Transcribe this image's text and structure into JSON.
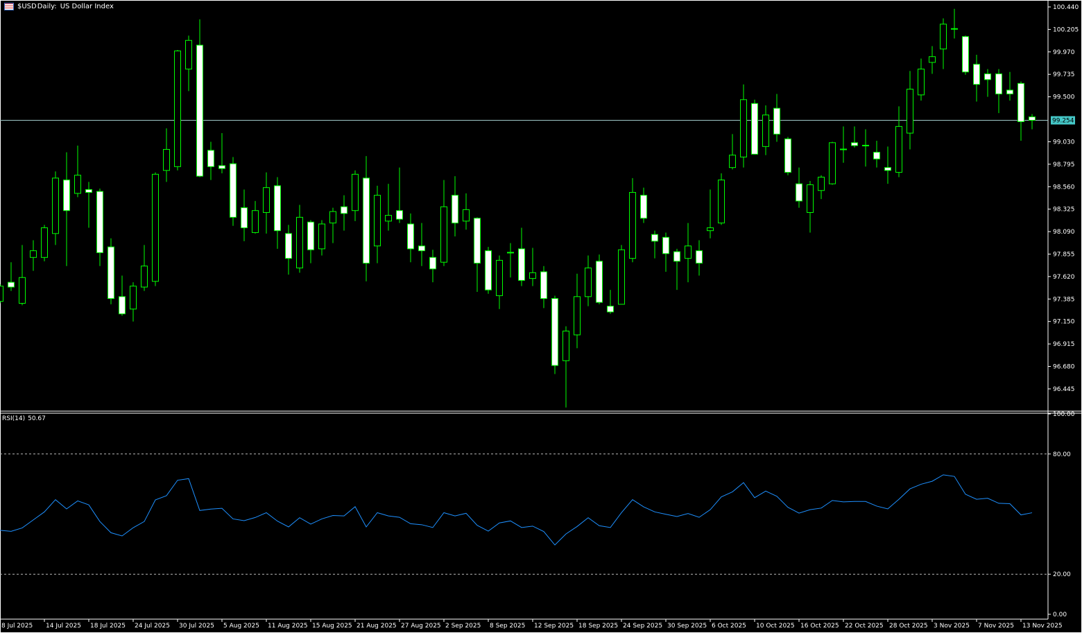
{
  "header": {
    "symbol": "$USD",
    "timeframe": "Daily:",
    "description": "US Dollar Index",
    "icon": "flag-icon"
  },
  "rsi_panel": {
    "name": "RSI(14)",
    "value": "50.67"
  },
  "colors": {
    "background": "#000000",
    "candle_outline": "#00ff00",
    "bear_body": "#ffffff",
    "bull_body": "#000000",
    "rsi_line": "#1e90ff",
    "price_line": "#9fc9c9",
    "price_label_bg": "#45c8c8",
    "axis": "#ffffff"
  },
  "chart_data": [
    {
      "type": "candlestick",
      "title": "$USD, Daily:  US Dollar Index",
      "ylim": [
        96.3,
        100.46
      ],
      "y_ticks": [
        "100.440",
        "100.205",
        "99.970",
        "99.735",
        "99.500",
        "99.030",
        "98.795",
        "98.560",
        "98.325",
        "98.090",
        "97.855",
        "97.620",
        "97.385",
        "97.150",
        "96.915",
        "96.680",
        "96.445"
      ],
      "current_price": "99.254",
      "x_ticks": [
        "8 Jul 2025",
        "14 Jul 2025",
        "18 Jul 2025",
        "24 Jul 2025",
        "30 Jul 2025",
        "5 Aug 2025",
        "11 Aug 2025",
        "15 Aug 2025",
        "21 Aug 2025",
        "27 Aug 2025",
        "2 Sep 2025",
        "8 Sep 2025",
        "12 Sep 2025",
        "18 Sep 2025",
        "24 Sep 2025",
        "30 Sep 2025",
        "6 Oct 2025",
        "10 Oct 2025",
        "16 Oct 2025",
        "22 Oct 2025",
        "28 Oct 2025",
        "3 Nov 2025",
        "7 Nov 2025",
        "13 Nov 2025"
      ],
      "columns": [
        "date",
        "open",
        "high",
        "low",
        "close"
      ],
      "candles": [
        [
          "8 Jul 2025",
          97.36,
          97.54,
          97.34,
          97.52
        ],
        [
          "9 Jul 2025",
          97.56,
          97.77,
          97.47,
          97.51
        ],
        [
          "10 Jul 2025",
          97.34,
          97.95,
          97.32,
          97.61
        ],
        [
          "11 Jul 2025",
          97.82,
          98.0,
          97.68,
          97.89
        ],
        [
          "14 Jul 2025",
          97.82,
          98.16,
          97.78,
          98.13
        ],
        [
          "15 Jul 2025",
          98.07,
          98.72,
          97.95,
          98.65
        ],
        [
          "16 Jul 2025",
          98.63,
          98.92,
          97.73,
          98.31
        ],
        [
          "17 Jul 2025",
          98.49,
          98.99,
          98.45,
          98.68
        ],
        [
          "18 Jul 2025",
          98.53,
          98.61,
          98.13,
          98.5
        ],
        [
          "21 Jul 2025",
          98.51,
          98.54,
          97.73,
          97.87
        ],
        [
          "22 Jul 2025",
          97.93,
          98.02,
          97.33,
          97.39
        ],
        [
          "23 Jul 2025",
          97.41,
          97.63,
          97.21,
          97.23
        ],
        [
          "24 Jul 2025",
          97.28,
          97.56,
          97.15,
          97.52
        ],
        [
          "25 Jul 2025",
          97.51,
          97.95,
          97.47,
          97.73
        ],
        [
          "28 Jul 2025",
          97.57,
          98.71,
          97.52,
          98.69
        ],
        [
          "29 Jul 2025",
          98.73,
          99.17,
          98.61,
          98.95
        ],
        [
          "30 Jul 2025",
          98.77,
          99.99,
          98.73,
          99.98
        ],
        [
          "31 Jul 2025",
          99.79,
          100.14,
          99.56,
          100.09
        ],
        [
          "1 Aug 2025",
          100.04,
          100.31,
          98.66,
          98.67
        ],
        [
          "4 Aug 2025",
          98.94,
          99.03,
          98.63,
          98.77
        ],
        [
          "5 Aug 2025",
          98.78,
          99.12,
          98.7,
          98.75
        ],
        [
          "6 Aug 2025",
          98.8,
          98.87,
          98.15,
          98.24
        ],
        [
          "7 Aug 2025",
          98.34,
          98.53,
          97.99,
          98.13
        ],
        [
          "8 Aug 2025",
          98.08,
          98.41,
          98.07,
          98.31
        ],
        [
          "11 Aug 2025",
          98.29,
          98.71,
          98.07,
          98.55
        ],
        [
          "12 Aug 2025",
          98.57,
          98.66,
          97.91,
          98.1
        ],
        [
          "13 Aug 2025",
          98.07,
          98.16,
          97.64,
          97.81
        ],
        [
          "14 Aug 2025",
          97.71,
          98.37,
          97.66,
          98.24
        ],
        [
          "15 Aug 2025",
          98.19,
          98.21,
          97.76,
          97.9
        ],
        [
          "18 Aug 2025",
          97.91,
          98.21,
          97.84,
          98.17
        ],
        [
          "19 Aug 2025",
          98.18,
          98.34,
          97.97,
          98.3
        ],
        [
          "20 Aug 2025",
          98.35,
          98.47,
          98.1,
          98.28
        ],
        [
          "21 Aug 2025",
          98.31,
          98.73,
          98.2,
          98.69
        ],
        [
          "22 Aug 2025",
          98.65,
          98.88,
          97.57,
          97.76
        ],
        [
          "25 Aug 2025",
          97.94,
          98.57,
          97.76,
          98.47
        ],
        [
          "26 Aug 2025",
          98.2,
          98.59,
          98.1,
          98.26
        ],
        [
          "27 Aug 2025",
          98.31,
          98.76,
          98.18,
          98.22
        ],
        [
          "28 Aug 2025",
          98.17,
          98.28,
          97.77,
          97.91
        ],
        [
          "29 Aug 2025",
          97.94,
          98.18,
          97.73,
          97.89
        ],
        [
          "1 Sep 2025",
          97.82,
          97.9,
          97.56,
          97.7
        ],
        [
          "2 Sep 2025",
          97.77,
          98.63,
          97.73,
          98.35
        ],
        [
          "3 Sep 2025",
          98.47,
          98.67,
          98.04,
          98.18
        ],
        [
          "4 Sep 2025",
          98.2,
          98.49,
          98.11,
          98.32
        ],
        [
          "5 Sep 2025",
          98.23,
          98.24,
          97.46,
          97.76
        ],
        [
          "8 Sep 2025",
          97.89,
          97.93,
          97.44,
          97.48
        ],
        [
          "9 Sep 2025",
          97.42,
          97.84,
          97.28,
          97.79
        ],
        [
          "10 Sep 2025",
          97.87,
          97.97,
          97.61,
          97.87
        ],
        [
          "11 Sep 2025",
          97.91,
          98.13,
          97.52,
          97.58
        ],
        [
          "12 Sep 2025",
          97.6,
          97.92,
          97.52,
          97.66
        ],
        [
          "15 Sep 2025",
          97.67,
          97.73,
          97.29,
          97.39
        ],
        [
          "16 Sep 2025",
          97.39,
          97.42,
          96.6,
          96.69
        ],
        [
          "17 Sep 2025",
          96.74,
          97.1,
          96.25,
          97.05
        ],
        [
          "18 Sep 2025",
          97.01,
          97.65,
          96.87,
          97.41
        ],
        [
          "19 Sep 2025",
          97.41,
          97.84,
          97.31,
          97.71
        ],
        [
          "22 Sep 2025",
          97.78,
          97.85,
          97.33,
          97.35
        ],
        [
          "23 Sep 2025",
          97.31,
          97.48,
          97.23,
          97.25
        ],
        [
          "24 Sep 2025",
          97.33,
          97.95,
          97.33,
          97.9
        ],
        [
          "25 Sep 2025",
          97.81,
          98.65,
          97.77,
          98.5
        ],
        [
          "26 Sep 2025",
          98.47,
          98.55,
          98.18,
          98.23
        ],
        [
          "29 Sep 2025",
          98.06,
          98.1,
          97.81,
          97.99
        ],
        [
          "30 Sep 2025",
          98.03,
          98.08,
          97.67,
          97.86
        ],
        [
          "1 Oct 2025",
          97.88,
          97.91,
          97.48,
          97.78
        ],
        [
          "2 Oct 2025",
          97.81,
          98.18,
          97.56,
          97.94
        ],
        [
          "3 Oct 2025",
          97.89,
          98.0,
          97.63,
          97.76
        ],
        [
          "6 Oct 2025",
          98.1,
          98.53,
          98.02,
          98.13
        ],
        [
          "7 Oct 2025",
          98.18,
          98.7,
          98.16,
          98.63
        ],
        [
          "8 Oct 2025",
          98.76,
          99.11,
          98.74,
          98.89
        ],
        [
          "9 Oct 2025",
          98.87,
          99.63,
          98.76,
          99.47
        ],
        [
          "10 Oct 2025",
          99.43,
          99.47,
          98.9,
          98.9
        ],
        [
          "13 Oct 2025",
          98.98,
          99.41,
          98.89,
          99.31
        ],
        [
          "14 Oct 2025",
          99.38,
          99.53,
          99.03,
          99.11
        ],
        [
          "15 Oct 2025",
          99.06,
          99.08,
          98.68,
          98.71
        ],
        [
          "16 Oct 2025",
          98.59,
          98.76,
          98.34,
          98.41
        ],
        [
          "17 Oct 2025",
          98.29,
          98.62,
          98.08,
          98.58
        ],
        [
          "20 Oct 2025",
          98.52,
          98.68,
          98.43,
          98.66
        ],
        [
          "21 Oct 2025",
          98.59,
          99.03,
          98.58,
          99.02
        ],
        [
          "22 Oct 2025",
          98.95,
          99.19,
          98.81,
          98.95
        ],
        [
          "23 Oct 2025",
          99.02,
          99.19,
          98.97,
          98.99
        ],
        [
          "24 Oct 2025",
          98.99,
          99.16,
          98.77,
          98.99
        ],
        [
          "27 Oct 2025",
          98.92,
          99.04,
          98.76,
          98.85
        ],
        [
          "28 Oct 2025",
          98.76,
          98.98,
          98.59,
          98.73
        ],
        [
          "29 Oct 2025",
          98.71,
          99.4,
          98.66,
          99.19
        ],
        [
          "30 Oct 2025",
          99.12,
          99.77,
          98.95,
          99.58
        ],
        [
          "31 Oct 2025",
          99.52,
          99.9,
          99.46,
          99.79
        ],
        [
          "3 Nov 2025",
          99.86,
          100.03,
          99.74,
          99.92
        ],
        [
          "4 Nov 2025",
          100.0,
          100.32,
          99.79,
          100.26
        ],
        [
          "5 Nov 2025",
          100.21,
          100.42,
          100.11,
          100.21
        ],
        [
          "6 Nov 2025",
          100.13,
          100.14,
          99.73,
          99.76
        ],
        [
          "7 Nov 2025",
          99.84,
          99.94,
          99.45,
          99.63
        ],
        [
          "10 Nov 2025",
          99.74,
          99.79,
          99.5,
          99.68
        ],
        [
          "11 Nov 2025",
          99.74,
          99.79,
          99.33,
          99.53
        ],
        [
          "12 Nov 2025",
          99.57,
          99.76,
          99.46,
          99.53
        ],
        [
          "13 Nov 2025",
          99.64,
          99.66,
          99.04,
          99.24
        ],
        [
          "14 Nov 2025",
          99.29,
          99.32,
          99.16,
          99.254
        ]
      ]
    },
    {
      "type": "line",
      "title": "RSI(14) 50.67",
      "ylim": [
        0,
        100
      ],
      "y_ticks": [
        "100.00",
        "80.00",
        "20.00",
        "0.00"
      ],
      "levels": [
        80,
        20
      ],
      "values": [
        41.9,
        41.4,
        43.1,
        47.1,
        51.1,
        57.2,
        52.6,
        56.6,
        54.6,
        46.3,
        40.7,
        39.1,
        43.2,
        46.3,
        57.1,
        59.2,
        66.9,
        67.7,
        51.8,
        52.5,
        52.9,
        47.6,
        46.7,
        48.3,
        50.7,
        46.5,
        43.6,
        48.2,
        45.0,
        47.6,
        49.3,
        49.1,
        53.7,
        43.6,
        50.7,
        49.1,
        48.4,
        45.2,
        44.7,
        43.3,
        50.7,
        49.1,
        50.4,
        44.4,
        41.5,
        45.6,
        46.6,
        43.3,
        44.0,
        41.3,
        34.6,
        40.1,
        43.8,
        48.2,
        44.2,
        43.3,
        50.7,
        57.2,
        53.6,
        51.1,
        49.9,
        48.8,
        50.3,
        48.4,
        52.2,
        58.6,
        61.1,
        65.7,
        58.2,
        61.5,
        58.9,
        53.4,
        50.5,
        52.2,
        53.0,
        56.8,
        56.1,
        56.3,
        56.3,
        54.0,
        52.6,
        57.4,
        62.6,
        64.9,
        66.4,
        69.6,
        68.8,
        59.9,
        57.4,
        57.9,
        55.4,
        55.2,
        49.6,
        50.67
      ]
    }
  ]
}
